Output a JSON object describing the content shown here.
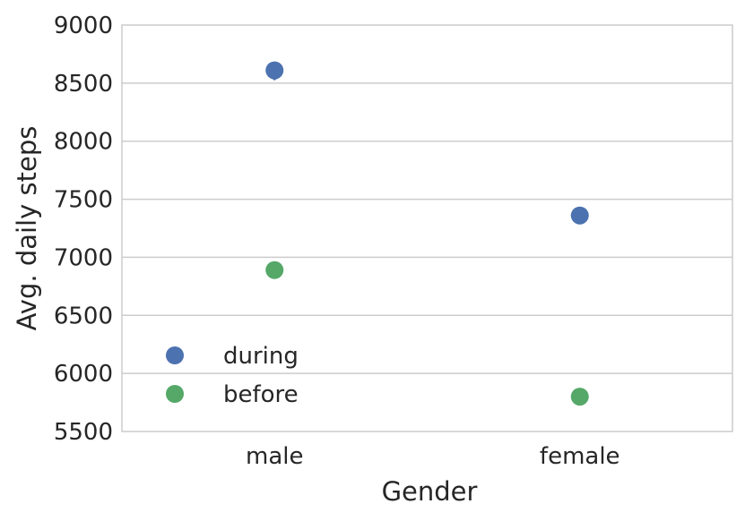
{
  "chart_data": {
    "type": "scatter",
    "categories": [
      "male",
      "female"
    ],
    "series": [
      {
        "name": "during",
        "values": [
          8610,
          7360
        ],
        "error": [
          [
            8540,
            8670
          ],
          [
            7300,
            7410
          ]
        ],
        "color": "#4c72b0"
      },
      {
        "name": "before",
        "values": [
          6890,
          5800
        ],
        "error": [
          null,
          null
        ],
        "color": "#55a868"
      }
    ],
    "xlabel": "Gender",
    "ylabel": "Avg. daily steps",
    "ylim": [
      5500,
      9000
    ],
    "yticks": [
      5500,
      6000,
      6500,
      7000,
      7500,
      8000,
      8500,
      9000
    ],
    "grid": true,
    "legend_position": "lower-left"
  }
}
